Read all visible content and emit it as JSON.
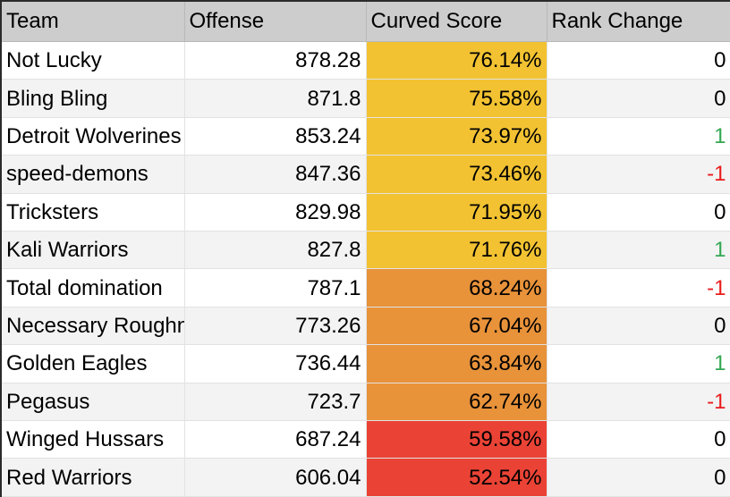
{
  "columns": {
    "team": "Team",
    "offense": "Offense",
    "curved_score": "Curved Score",
    "rank_change": "Rank Change"
  },
  "colors": {
    "header_bg": "#cdcdcd",
    "yellow": "#f2c232",
    "orange": "#e8923a",
    "red": "#ea4335",
    "positive": "#34a853",
    "negative": "#ea1c1c"
  },
  "rows": [
    {
      "team": "Not Lucky",
      "offense": "878.28",
      "score": "76.14%",
      "tier": "yellow",
      "rank": "0",
      "rank_sign": "zero"
    },
    {
      "team": "Bling Bling",
      "offense": "871.8",
      "score": "75.58%",
      "tier": "yellow",
      "rank": "0",
      "rank_sign": "zero"
    },
    {
      "team": "Detroit Wolverines",
      "offense": "853.24",
      "score": "73.97%",
      "tier": "yellow",
      "rank": "1",
      "rank_sign": "pos"
    },
    {
      "team": "speed-demons",
      "offense": "847.36",
      "score": "73.46%",
      "tier": "yellow",
      "rank": "-1",
      "rank_sign": "neg"
    },
    {
      "team": "Tricksters",
      "offense": "829.98",
      "score": "71.95%",
      "tier": "yellow",
      "rank": "0",
      "rank_sign": "zero"
    },
    {
      "team": "Kali Warriors",
      "offense": "827.8",
      "score": "71.76%",
      "tier": "yellow",
      "rank": "1",
      "rank_sign": "pos"
    },
    {
      "team": "Total domination",
      "offense": "787.1",
      "score": "68.24%",
      "tier": "orange",
      "rank": "-1",
      "rank_sign": "neg"
    },
    {
      "team": "Necessary Roughness",
      "offense": "773.26",
      "score": "67.04%",
      "tier": "orange",
      "rank": "0",
      "rank_sign": "zero"
    },
    {
      "team": "Golden Eagles",
      "offense": "736.44",
      "score": "63.84%",
      "tier": "orange",
      "rank": "1",
      "rank_sign": "pos"
    },
    {
      "team": "Pegasus",
      "offense": "723.7",
      "score": "62.74%",
      "tier": "orange",
      "rank": "-1",
      "rank_sign": "neg"
    },
    {
      "team": "Winged Hussars",
      "offense": "687.24",
      "score": "59.58%",
      "tier": "red",
      "rank": "0",
      "rank_sign": "zero"
    },
    {
      "team": "Red Warriors",
      "offense": "606.04",
      "score": "52.54%",
      "tier": "red",
      "rank": "0",
      "rank_sign": "zero"
    }
  ]
}
